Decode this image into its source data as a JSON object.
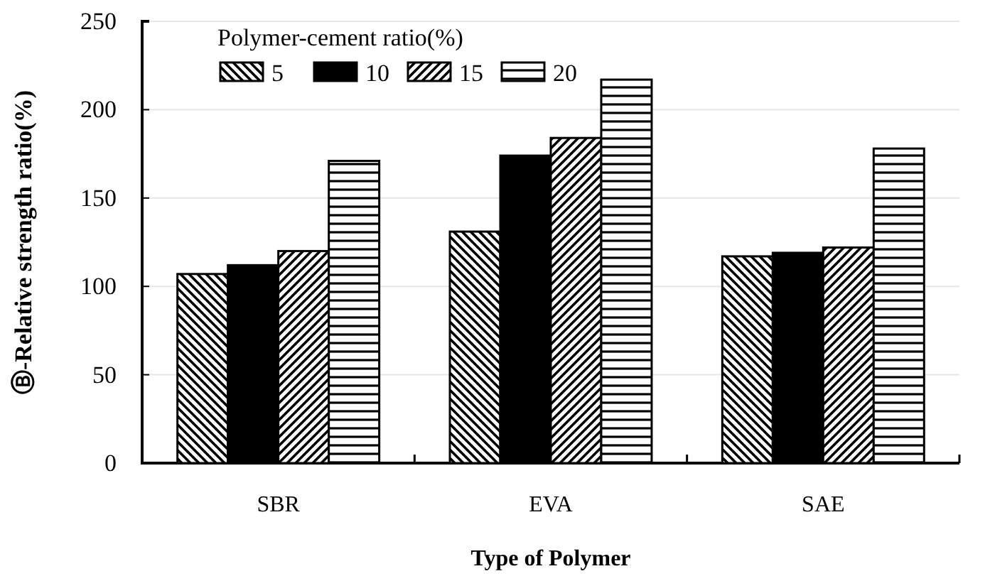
{
  "chart_data": {
    "type": "bar",
    "xlabel": "Type of Polymer",
    "ylabel": "Ⓑ-Relative strength ratio(%)",
    "legend_title": "Polymer-cement ratio(%)",
    "categories": [
      "SBR",
      "EVA",
      "SAE"
    ],
    "series": [
      {
        "name": "5",
        "color": "#000000",
        "values": [
          107,
          131,
          117
        ]
      },
      {
        "name": "10",
        "color": "#000000",
        "values": [
          112,
          174,
          119
        ]
      },
      {
        "name": "15",
        "color": "#000000",
        "values": [
          120,
          184,
          122
        ]
      },
      {
        "name": "20",
        "color": "#000000",
        "values": [
          171,
          217,
          178
        ]
      }
    ],
    "ylim": [
      0,
      250
    ],
    "yticks": [
      0,
      50,
      100,
      150,
      200,
      250
    ],
    "grid": "y",
    "legend": "top left"
  }
}
